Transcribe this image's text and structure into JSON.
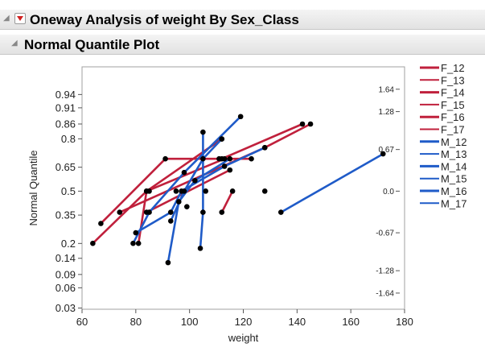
{
  "header": {
    "title": "Oneway Analysis of weight By Sex_Class",
    "subtitle": "Normal Quantile Plot"
  },
  "chart_data": {
    "type": "line",
    "xlabel": "weight",
    "ylabel": "Normal Quantile",
    "xlim": [
      60,
      180
    ],
    "x_ticks": [
      60,
      80,
      100,
      120,
      140,
      160,
      180
    ],
    "y_ticks_left": [
      0.03,
      0.06,
      0.09,
      0.14,
      0.2,
      0.35,
      0.5,
      0.65,
      0.8,
      0.86,
      0.91,
      0.94
    ],
    "y_ticks_right": [
      -1.64,
      -1.28,
      -0.67,
      0.0,
      0.67,
      1.28,
      1.64
    ],
    "y_right_labels": [
      "-1.64",
      "-1.28",
      "-0.67",
      "0.0",
      "0.67",
      "1.28",
      "1.64"
    ],
    "legend_position": "right",
    "series": [
      {
        "name": "F_12",
        "color": "#c0203c",
        "x": [
          64,
          84,
          112
        ],
        "y": [
          -0.84,
          0.0,
          0.84
        ]
      },
      {
        "name": "F_13",
        "color": "#c0203c",
        "x": [
          67,
          91,
          112,
          142
        ],
        "y": [
          -0.52,
          0.52,
          0.52,
          1.08
        ]
      },
      {
        "name": "F_14",
        "color": "#c0203c",
        "x": [
          81,
          84,
          113,
          123
        ],
        "y": [
          -0.84,
          0.0,
          0.52,
          0.52
        ]
      },
      {
        "name": "F_15",
        "color": "#c0203c",
        "x": [
          74,
          128,
          145
        ],
        "y": [
          -0.34,
          0.7,
          1.08
        ]
      },
      {
        "name": "F_16",
        "color": "#c0203c",
        "x": [
          84,
          115
        ],
        "y": [
          -0.34,
          0.34
        ]
      },
      {
        "name": "F_17",
        "color": "#c0203c",
        "x": [
          112,
          116
        ],
        "y": [
          -0.34,
          0.0
        ]
      },
      {
        "name": "M_12",
        "color": "#1f5bc8",
        "x": [
          79,
          85,
          98,
          119
        ],
        "y": [
          -0.84,
          -0.34,
          0.3,
          1.2
        ]
      },
      {
        "name": "M_13",
        "color": "#1f5bc8",
        "x": [
          80,
          93,
          97,
          113,
          128
        ],
        "y": [
          -0.67,
          -0.34,
          0.0,
          0.4,
          0.7
        ]
      },
      {
        "name": "M_14",
        "color": "#1f5bc8",
        "x": [
          92,
          96,
          102,
          115
        ],
        "y": [
          -1.15,
          -0.17,
          0.17,
          0.52
        ]
      },
      {
        "name": "M_15",
        "color": "#1f5bc8",
        "x": [
          93,
          98,
          105,
          112
        ],
        "y": [
          -0.48,
          0.0,
          0.52,
          0.84
        ]
      },
      {
        "name": "M_16",
        "color": "#1f5bc8",
        "x": [
          104,
          105,
          105
        ],
        "y": [
          -0.92,
          -0.34,
          0.95
        ]
      },
      {
        "name": "M_17",
        "color": "#1f5bc8",
        "x": [
          134,
          172
        ],
        "y": [
          -0.34,
          0.6
        ]
      }
    ],
    "extra_points": [
      {
        "x": 85,
        "y": 0.0
      },
      {
        "x": 95,
        "y": 0.0
      },
      {
        "x": 99,
        "y": -0.25
      },
      {
        "x": 106,
        "y": 0.0
      },
      {
        "x": 128,
        "y": 0.0
      },
      {
        "x": 111,
        "y": 0.52
      }
    ]
  }
}
